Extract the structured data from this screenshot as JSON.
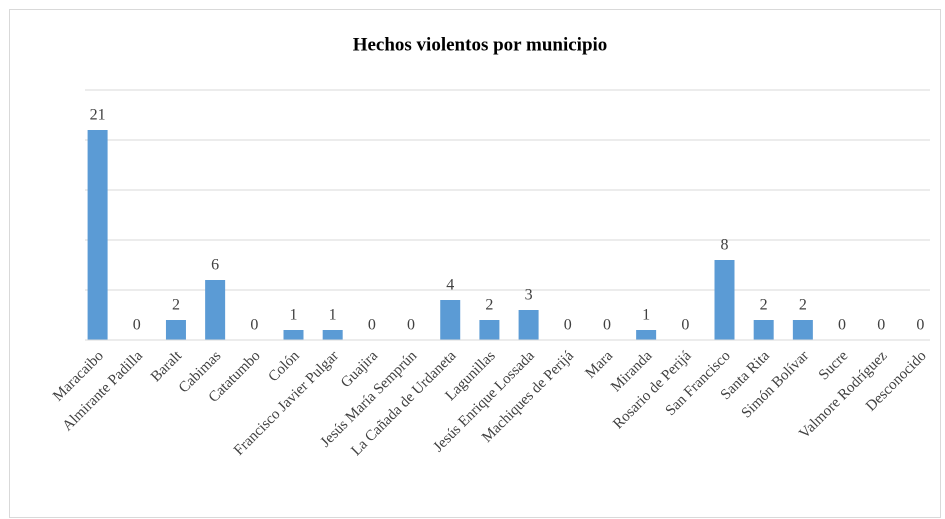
{
  "chart_data": {
    "type": "bar",
    "title": "Hechos violentos por municipio",
    "categories": [
      "Maracaibo",
      "Almirante Padilla",
      "Baralt",
      "Cabimas",
      "Catatumbo",
      "Colón",
      "Francisco Javier Pulgar",
      "Guajira",
      "Jesús María Semprún",
      "La Cañada de Urdaneta",
      "Lagunillas",
      "Jesús Enrique Lossada",
      "Machiques de Perijá",
      "Mara",
      "Miranda",
      "Rosario de Perijá",
      "San Francisco",
      "Santa Rita",
      "Simón Bolívar",
      "Sucre",
      "Valmore Rodríguez",
      "Desconocido"
    ],
    "values": [
      21,
      0,
      2,
      6,
      0,
      1,
      1,
      0,
      0,
      4,
      2,
      3,
      0,
      0,
      1,
      0,
      8,
      2,
      2,
      0,
      0,
      0
    ],
    "color": "#5b9bd5",
    "ylim": [
      0,
      25
    ],
    "yticks": [
      0,
      5,
      10,
      15,
      20,
      25
    ],
    "grid": true
  }
}
